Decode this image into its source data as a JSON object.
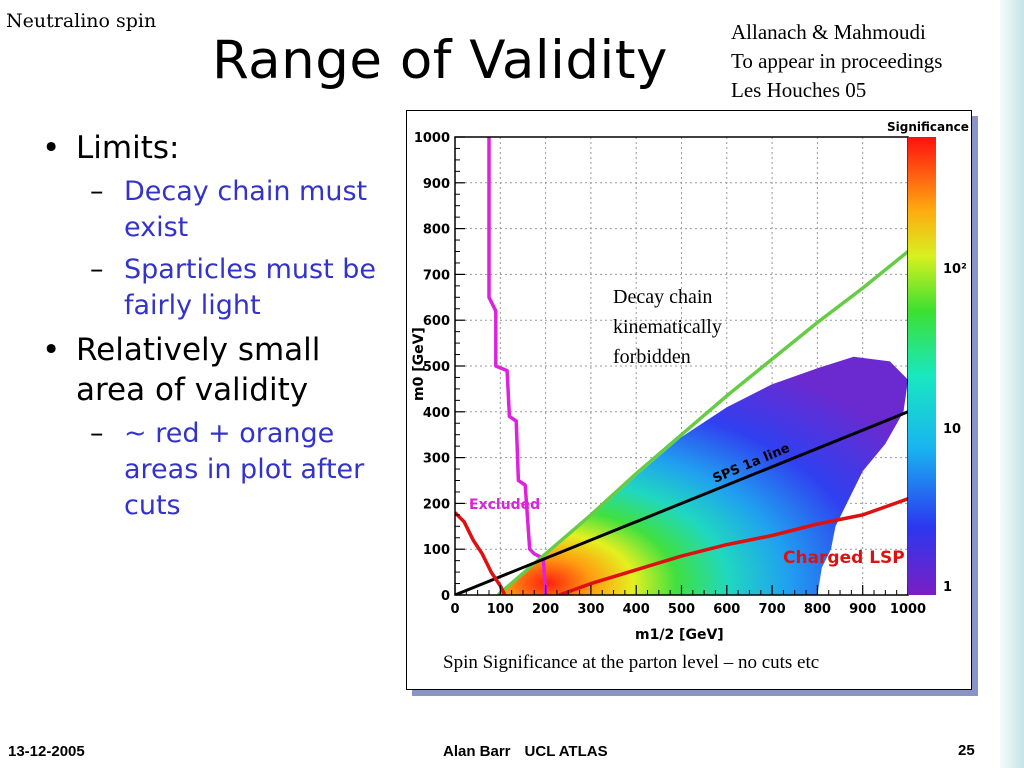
{
  "header": {
    "corner_label": "Neutralino spin",
    "title": "Range of Validity",
    "citation": [
      "Allanach & Mahmoudi",
      "To appear in proceedings",
      "Les Houches 05"
    ]
  },
  "bullets": [
    {
      "text": "Limits:",
      "sub": [
        "Decay chain must exist",
        "Sparticles must be fairly light"
      ]
    },
    {
      "text": "Relatively small area of validity",
      "sub": [
        "~ red + orange areas in plot after cuts"
      ]
    }
  ],
  "figure": {
    "caption": "Spin Significance at the parton level – no cuts etc",
    "annotation": [
      "Decay chain",
      "kinematically",
      "forbidden"
    ]
  },
  "chart_data": {
    "type": "heatmap",
    "xlabel": "m1/2 [GeV]",
    "ylabel": "m0 [GeV]",
    "xlim": [
      0,
      1000
    ],
    "ylim": [
      0,
      1000
    ],
    "x_ticks": [
      "0",
      "100",
      "200",
      "300",
      "400",
      "500",
      "600",
      "700",
      "800",
      "900",
      "1000"
    ],
    "y_ticks": [
      "0",
      "100",
      "200",
      "300",
      "400",
      "500",
      "600",
      "700",
      "800",
      "900",
      "1000"
    ],
    "grid": true,
    "colorbar": {
      "title": "Significance",
      "scale": "log",
      "ticks": [
        "1",
        "10",
        "10²"
      ]
    },
    "region_labels": [
      "Excluded",
      "SPS 1a line",
      "Charged LSP"
    ],
    "curves": [
      {
        "name": "Excluded",
        "color": "#dd22dd",
        "points": [
          [
            75,
            1000
          ],
          [
            75,
            650
          ],
          [
            90,
            620
          ],
          [
            90,
            500
          ],
          [
            115,
            490
          ],
          [
            120,
            390
          ],
          [
            135,
            380
          ],
          [
            140,
            250
          ],
          [
            155,
            240
          ],
          [
            165,
            100
          ],
          [
            175,
            90
          ],
          [
            195,
            80
          ],
          [
            200,
            0
          ]
        ]
      },
      {
        "name": "kinematic limit",
        "color": "#66cc44",
        "points": [
          [
            95,
            0
          ],
          [
            200,
            90
          ],
          [
            300,
            175
          ],
          [
            400,
            265
          ],
          [
            500,
            350
          ],
          [
            600,
            435
          ],
          [
            700,
            515
          ],
          [
            800,
            595
          ],
          [
            900,
            670
          ],
          [
            1000,
            750
          ]
        ]
      },
      {
        "name": "SPS 1a line",
        "color": "#000000",
        "points": [
          [
            0,
            0
          ],
          [
            1000,
            400
          ]
        ]
      },
      {
        "name": "Charged LSP",
        "color": "#dd1111",
        "points": [
          [
            230,
            0
          ],
          [
            300,
            25
          ],
          [
            400,
            55
          ],
          [
            500,
            85
          ],
          [
            600,
            110
          ],
          [
            700,
            130
          ],
          [
            800,
            155
          ],
          [
            900,
            175
          ],
          [
            1000,
            210
          ]
        ]
      },
      {
        "name": "low exclusion",
        "color": "#dd1111",
        "points": [
          [
            0,
            180
          ],
          [
            20,
            160
          ],
          [
            40,
            120
          ],
          [
            60,
            90
          ],
          [
            80,
            50
          ],
          [
            100,
            20
          ],
          [
            110,
            0
          ]
        ]
      }
    ],
    "colors": {
      "accent_text": "#3333cc",
      "frame_shadow": "#8a95c7",
      "deco_bar": "#c6e4e8"
    }
  },
  "footer": {
    "date": "13-12-2005",
    "author": "Alan Barr",
    "affiliation": "UCL ATLAS",
    "page": "25"
  }
}
